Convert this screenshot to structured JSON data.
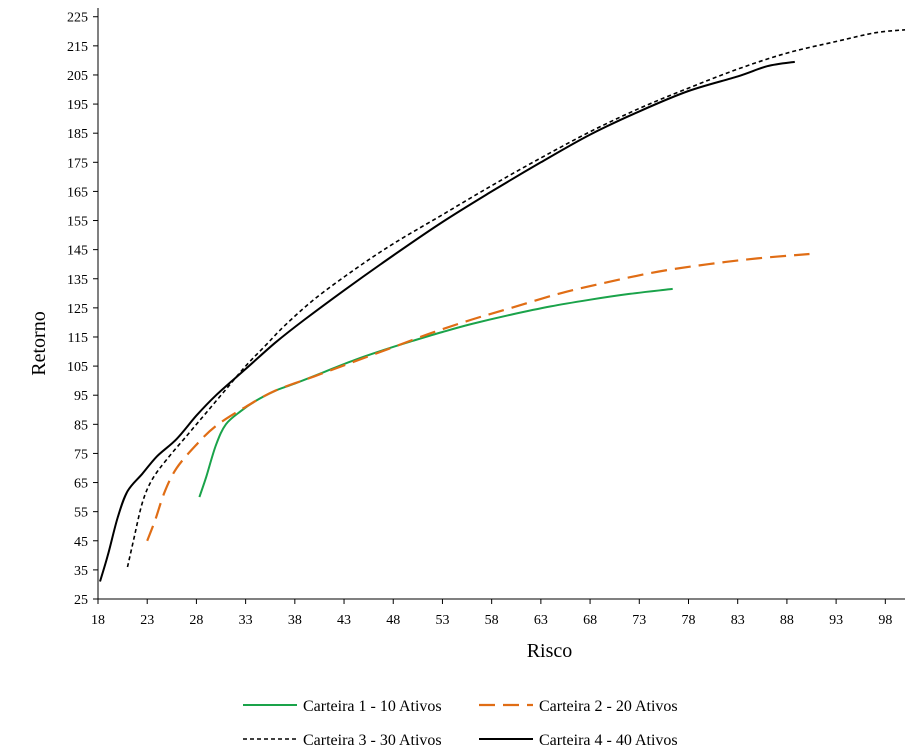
{
  "chart_data": {
    "type": "line",
    "xlabel": "Risco",
    "ylabel": "Retorno",
    "xlim": [
      18,
      100
    ],
    "ylim": [
      25,
      228
    ],
    "x_ticks": [
      "18",
      "23",
      "28",
      "33",
      "38",
      "43",
      "48",
      "53",
      "58",
      "63",
      "68",
      "73",
      "78",
      "83",
      "88",
      "93",
      "98"
    ],
    "y_ticks": [
      "25",
      "35",
      "45",
      "55",
      "65",
      "75",
      "85",
      "95",
      "105",
      "115",
      "125",
      "135",
      "145",
      "155",
      "165",
      "175",
      "185",
      "195",
      "205",
      "215",
      "225"
    ],
    "grid": false,
    "legend_position": "bottom",
    "series": [
      {
        "name": "Carteira 1 - 10 Ativos",
        "color": "#1aa34a",
        "dash": "solid",
        "points": [
          [
            28.3,
            60
          ],
          [
            29,
            67
          ],
          [
            30,
            78
          ],
          [
            31,
            85
          ],
          [
            32.5,
            89.5
          ],
          [
            34,
            93
          ],
          [
            36,
            96.5
          ],
          [
            38,
            99
          ],
          [
            41,
            103
          ],
          [
            44,
            107
          ],
          [
            47,
            110.5
          ],
          [
            50,
            113.7
          ],
          [
            53,
            116.7
          ],
          [
            56,
            119.5
          ],
          [
            60,
            122.7
          ],
          [
            64,
            125.5
          ],
          [
            68,
            127.8
          ],
          [
            72,
            129.8
          ],
          [
            76.4,
            131.5
          ]
        ]
      },
      {
        "name": "Carteira 2 - 20 Ativos",
        "color": "#e06d15",
        "dash": "long-dash",
        "points": [
          [
            23,
            45
          ],
          [
            23.8,
            52
          ],
          [
            24.8,
            62
          ],
          [
            26,
            70
          ],
          [
            28,
            78
          ],
          [
            30,
            84.5
          ],
          [
            33,
            91
          ],
          [
            36,
            96.5
          ],
          [
            40,
            101.5
          ],
          [
            44,
            106.5
          ],
          [
            48,
            111.5
          ],
          [
            52,
            116.5
          ],
          [
            56,
            121
          ],
          [
            60,
            125
          ],
          [
            65,
            130
          ],
          [
            70,
            134
          ],
          [
            75,
            137.5
          ],
          [
            80,
            140
          ],
          [
            85,
            142
          ],
          [
            90.3,
            143.5
          ]
        ]
      },
      {
        "name": "Carteira 3 - 30 Ativos",
        "color": "#000000",
        "dash": "short-dash",
        "points": [
          [
            21,
            36
          ],
          [
            21.6,
            45
          ],
          [
            22.5,
            58
          ],
          [
            23.5,
            66
          ],
          [
            25,
            73
          ],
          [
            27,
            81
          ],
          [
            29,
            89
          ],
          [
            31,
            97
          ],
          [
            33,
            105
          ],
          [
            35,
            112
          ],
          [
            37,
            119
          ],
          [
            40,
            128
          ],
          [
            44,
            138
          ],
          [
            48,
            147
          ],
          [
            53,
            157
          ],
          [
            58,
            167
          ],
          [
            63,
            176.5
          ],
          [
            68,
            185.5
          ],
          [
            73,
            193.5
          ],
          [
            78,
            200.5
          ],
          [
            83,
            207
          ],
          [
            88,
            212.5
          ],
          [
            93,
            216.5
          ],
          [
            97,
            219.5
          ],
          [
            100,
            220.5
          ]
        ]
      },
      {
        "name": "Carteira 4 - 40 Ativos",
        "color": "#000000",
        "dash": "solid",
        "points": [
          [
            18.2,
            31
          ],
          [
            19,
            40
          ],
          [
            20,
            53
          ],
          [
            21,
            62
          ],
          [
            22.5,
            68
          ],
          [
            24,
            74
          ],
          [
            26,
            80
          ],
          [
            28,
            88
          ],
          [
            30,
            95
          ],
          [
            33,
            104
          ],
          [
            36,
            113
          ],
          [
            39,
            121
          ],
          [
            43,
            131
          ],
          [
            48,
            143
          ],
          [
            53,
            154.5
          ],
          [
            58,
            165
          ],
          [
            63,
            175
          ],
          [
            68,
            184.5
          ],
          [
            73,
            192.5
          ],
          [
            78,
            199.5
          ],
          [
            83,
            204.5
          ],
          [
            86,
            208
          ],
          [
            88.8,
            209.5
          ]
        ]
      }
    ]
  }
}
